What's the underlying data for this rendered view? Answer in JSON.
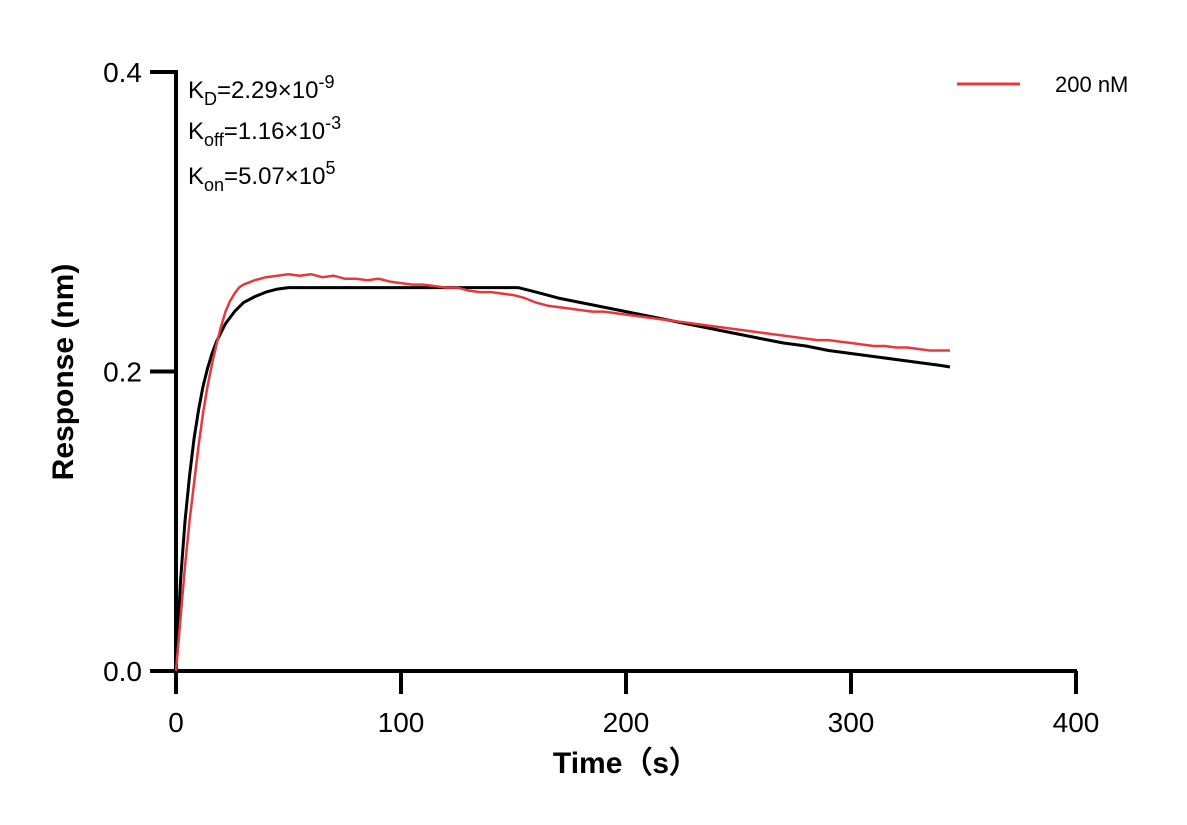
{
  "chart_data": {
    "type": "line",
    "title": "",
    "xlabel": "Time（s）",
    "ylabel": "Response (nm)",
    "xlim": [
      0,
      400
    ],
    "ylim": [
      0,
      0.4
    ],
    "x_ticks": [
      "0",
      "100",
      "200",
      "300",
      "400"
    ],
    "y_ticks": [
      "0.0",
      "0.2",
      "0.4"
    ],
    "grid": false,
    "legend_position": "top-right",
    "legend": [
      {
        "name": "200 nM",
        "color": "#e8383d"
      }
    ],
    "annotations": [
      {
        "base": "K",
        "sub": "D",
        "value": "=2.29×10",
        "exp": "-9"
      },
      {
        "base": "K",
        "sub": "off",
        "value": "=1.16×10",
        "exp": "-3"
      },
      {
        "base": "K",
        "sub": "on",
        "value": "=5.07×10",
        "exp": "5"
      }
    ],
    "series": [
      {
        "name": "200 nM",
        "color": "#e8383d",
        "x": [
          0,
          2,
          4,
          6,
          8,
          10,
          12,
          14,
          16,
          18,
          20,
          22,
          24,
          26,
          28,
          30,
          35,
          40,
          45,
          50,
          55,
          60,
          65,
          70,
          75,
          80,
          85,
          90,
          95,
          100,
          105,
          110,
          115,
          120,
          125,
          130,
          135,
          140,
          145,
          150,
          155,
          160,
          165,
          170,
          175,
          180,
          185,
          190,
          195,
          200,
          205,
          210,
          215,
          220,
          225,
          230,
          235,
          240,
          245,
          250,
          255,
          260,
          265,
          270,
          275,
          280,
          285,
          290,
          295,
          300,
          305,
          310,
          315,
          320,
          325,
          330,
          335,
          340,
          344
        ],
        "y": [
          0.0,
          0.035,
          0.07,
          0.1,
          0.125,
          0.15,
          0.172,
          0.19,
          0.205,
          0.218,
          0.23,
          0.24,
          0.247,
          0.252,
          0.256,
          0.258,
          0.261,
          0.263,
          0.264,
          0.265,
          0.264,
          0.265,
          0.263,
          0.264,
          0.262,
          0.262,
          0.261,
          0.262,
          0.26,
          0.259,
          0.258,
          0.258,
          0.257,
          0.256,
          0.256,
          0.254,
          0.253,
          0.253,
          0.252,
          0.251,
          0.249,
          0.246,
          0.244,
          0.243,
          0.242,
          0.241,
          0.24,
          0.24,
          0.239,
          0.238,
          0.237,
          0.236,
          0.235,
          0.234,
          0.233,
          0.232,
          0.231,
          0.23,
          0.229,
          0.228,
          0.227,
          0.226,
          0.225,
          0.224,
          0.223,
          0.222,
          0.221,
          0.221,
          0.22,
          0.219,
          0.218,
          0.217,
          0.217,
          0.216,
          0.216,
          0.215,
          0.214,
          0.214,
          0.214
        ]
      },
      {
        "name": "",
        "color": "#000000",
        "x": [
          0,
          2,
          4,
          6,
          8,
          10,
          12,
          14,
          16,
          18,
          20,
          22,
          24,
          26,
          28,
          30,
          35,
          40,
          45,
          50,
          55,
          60,
          70,
          80,
          90,
          100,
          110,
          120,
          130,
          140,
          150,
          152,
          160,
          170,
          180,
          190,
          200,
          210,
          220,
          230,
          240,
          250,
          260,
          270,
          280,
          290,
          300,
          310,
          320,
          330,
          340,
          344
        ],
        "y": [
          0.0,
          0.06,
          0.1,
          0.13,
          0.155,
          0.174,
          0.19,
          0.202,
          0.212,
          0.22,
          0.226,
          0.232,
          0.236,
          0.24,
          0.243,
          0.246,
          0.25,
          0.253,
          0.255,
          0.256,
          0.256,
          0.256,
          0.256,
          0.256,
          0.256,
          0.256,
          0.256,
          0.256,
          0.256,
          0.256,
          0.256,
          0.256,
          0.253,
          0.249,
          0.246,
          0.243,
          0.24,
          0.237,
          0.234,
          0.231,
          0.228,
          0.225,
          0.222,
          0.219,
          0.217,
          0.214,
          0.212,
          0.21,
          0.208,
          0.206,
          0.204,
          0.203
        ]
      }
    ]
  }
}
